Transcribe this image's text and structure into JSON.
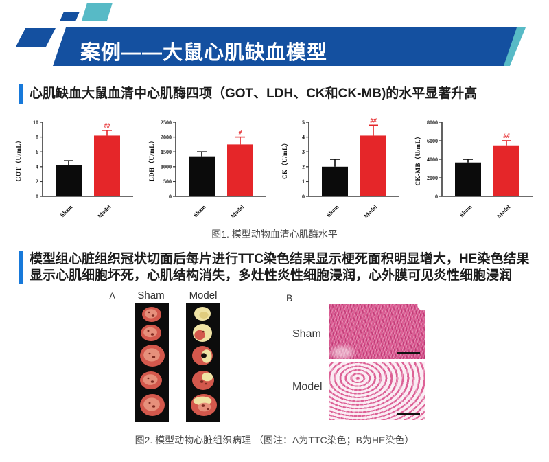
{
  "slide": {
    "banner_title": "案例——大鼠心肌缺血模型",
    "section1_heading": "心肌缺血大鼠血清中心肌酶四项（GOT、LDH、CK和CK-MB)的水平显著升高",
    "figure1_caption": "图1. 模型动物血清心肌酶水平",
    "section2_heading": "模型组心脏组织冠状切面后每片进行TTC染色结果显示梗死面积明显增大，HE染色结果显示心肌细胞坏死，心肌结构消失，多灶性炎性细胞浸润，心外膜可见炎性细胞浸润",
    "figure2_caption": "图2. 模型动物心脏组织病理 （图注：A为TTC染色；B为HE染色）"
  },
  "figure2": {
    "panel_a_label": "A",
    "panel_a_columns": [
      "Sham",
      "Model"
    ],
    "panel_b_label": "B",
    "panel_b_rows": [
      "Sham",
      "Model"
    ]
  },
  "chart_data": [
    {
      "type": "bar",
      "ylabel": "GOT（U/mL）",
      "categories": [
        "Sham",
        "Model"
      ],
      "values": [
        4.2,
        8.2
      ],
      "errors": [
        0.6,
        0.7
      ],
      "annotations": [
        "",
        "##"
      ],
      "yticks": [
        0,
        2,
        4,
        6,
        8,
        10
      ],
      "ylim": [
        0,
        10
      ],
      "bar_colors": [
        "#0b0b0b",
        "#e52629"
      ],
      "grid": false,
      "legend": "none"
    },
    {
      "type": "bar",
      "ylabel": "LDH（U/mL）",
      "categories": [
        "Sham",
        "Model"
      ],
      "values": [
        1350,
        1750
      ],
      "errors": [
        150,
        250
      ],
      "annotations": [
        "",
        "#"
      ],
      "yticks": [
        0,
        500,
        1000,
        1500,
        2000,
        2500
      ],
      "ylim": [
        0,
        2500
      ],
      "bar_colors": [
        "#0b0b0b",
        "#e52629"
      ],
      "grid": false,
      "legend": "none"
    },
    {
      "type": "bar",
      "ylabel": "CK（U/mL）",
      "categories": [
        "Sham",
        "Model"
      ],
      "values": [
        2.0,
        4.1
      ],
      "errors": [
        0.5,
        0.7
      ],
      "annotations": [
        "",
        "##"
      ],
      "yticks": [
        0,
        1,
        2,
        3,
        4,
        5
      ],
      "ylim": [
        0,
        5
      ],
      "bar_colors": [
        "#0b0b0b",
        "#e52629"
      ],
      "grid": false,
      "legend": "none"
    },
    {
      "type": "bar",
      "ylabel": "CK-MB（U/mL）",
      "categories": [
        "Sham",
        "Model"
      ],
      "values": [
        3650,
        5500
      ],
      "errors": [
        350,
        500
      ],
      "annotations": [
        "",
        "##"
      ],
      "yticks": [
        0,
        2000,
        4000,
        6000,
        8000
      ],
      "ylim": [
        0,
        8000
      ],
      "bar_colors": [
        "#0b0b0b",
        "#e52629"
      ],
      "grid": false,
      "legend": "none"
    }
  ],
  "colors": {
    "banner_blue": "#1450a0",
    "accent_teal": "#57bac6",
    "heading_bar_blue": "#1779da",
    "bar_black": "#0b0b0b",
    "bar_red": "#e52629",
    "annotation_red": "#e52629",
    "strip_black": "#0c0c0c"
  }
}
